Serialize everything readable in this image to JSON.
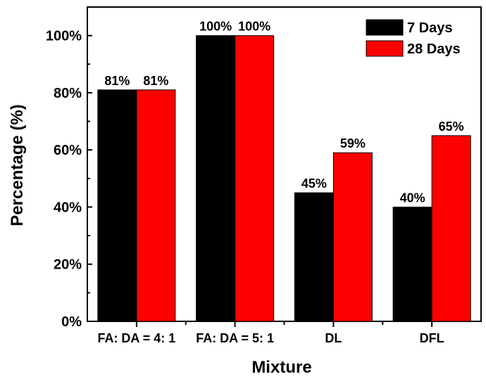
{
  "chart_data": {
    "type": "bar",
    "categories": [
      "FA: DA = 4: 1",
      "FA: DA = 5: 1",
      "DL",
      "DFL"
    ],
    "series": [
      {
        "name": "7 Days",
        "values": [
          81,
          100,
          45,
          40
        ],
        "labels": [
          "81%",
          "100%",
          "45%",
          "40%"
        ],
        "color": "#000000"
      },
      {
        "name": "28 Days",
        "values": [
          81,
          100,
          59,
          65
        ],
        "labels": [
          "81%",
          "100%",
          "59%",
          "65%"
        ],
        "color": "#ff0000"
      }
    ],
    "xlabel": "Mixture",
    "ylabel": "Percentage (%)",
    "ylim": [
      0,
      110
    ],
    "yticks": [
      0,
      20,
      40,
      60,
      80,
      100
    ],
    "ytick_labels": [
      "0%",
      "20%",
      "40%",
      "60%",
      "80%",
      "100%"
    ],
    "legend_position": "top-right",
    "grid": false
  }
}
